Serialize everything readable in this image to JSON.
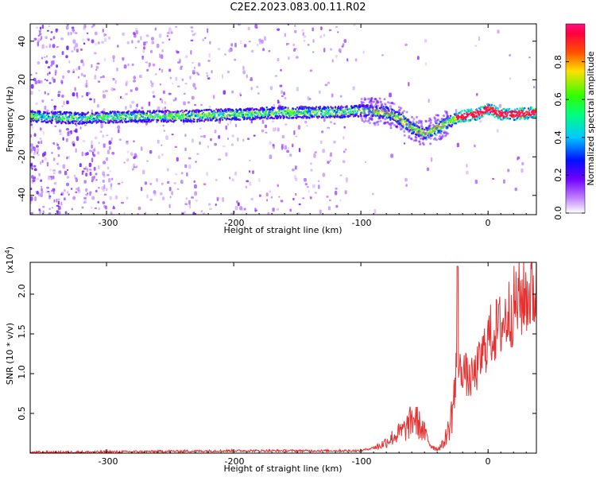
{
  "title": "C2E2.2023.083.00.11.R02",
  "chart_data": [
    {
      "type": "heatmap",
      "description": "Spectrogram of normalized spectral amplitude vs. height of straight line and frequency",
      "xlabel": "Height of straight line (km)",
      "ylabel": "Frequency (Hz)",
      "xlim": [
        -360,
        38
      ],
      "ylim": [
        -50,
        49
      ],
      "xticks": [
        -300,
        -200,
        -100,
        0
      ],
      "yticks": [
        -40,
        -20,
        0,
        20,
        40
      ],
      "ridge": {
        "x": [
          -360,
          -320,
          -280,
          -240,
          -200,
          -160,
          -120,
          -100,
          -80,
          -70,
          -60,
          -50,
          -40,
          -30,
          -25,
          -20,
          -10,
          -5,
          0,
          10,
          20,
          38
        ],
        "y": [
          1,
          0,
          1,
          1,
          2,
          3,
          3,
          4,
          3,
          0,
          -5,
          -8,
          -5,
          -2,
          0,
          1,
          2,
          3,
          5,
          2,
          2,
          3
        ]
      },
      "colorbar": {
        "label": "Normalized spectral amplitude",
        "range": [
          0,
          1
        ],
        "ticks": [
          0.0,
          0.2,
          0.4,
          0.6,
          0.8
        ],
        "tick_labels": [
          "0.0",
          "0.2",
          "0.4",
          "0.6",
          "0.8"
        ]
      }
    },
    {
      "type": "line",
      "xlabel": "Height of straight line (km)",
      "ylabel": "SNR (10 * v/v)",
      "scale_note": "(x10",
      "scale_exp": "4",
      "scale_close": ")",
      "xlim": [
        -360,
        38
      ],
      "ylim": [
        0,
        24000
      ],
      "xticks": [
        -300,
        -200,
        -100,
        0
      ],
      "yticks": [
        5000,
        10000,
        15000,
        20000
      ],
      "ytick_labels": [
        "0.5",
        "1.0",
        "1.5",
        "2.0"
      ],
      "color": "#e83030",
      "series_envelope": {
        "x": [
          -360,
          -300,
          -200,
          -100,
          -85,
          -75,
          -65,
          -58,
          -50,
          -45,
          -40,
          -35,
          -30,
          -25,
          -20,
          -15,
          -10,
          -5,
          0,
          10,
          20,
          30,
          38
        ],
        "y": [
          100,
          150,
          300,
          300,
          900,
          2000,
          3000,
          4500,
          2500,
          1000,
          500,
          1200,
          3500,
          9000,
          11000,
          9000,
          10000,
          12000,
          14500,
          16000,
          18500,
          20000,
          20500
        ]
      }
    }
  ],
  "axis_text": {
    "x300": "-300",
    "x200": "-200",
    "x100": "-100",
    "x0": "0",
    "y40": "40",
    "y20": "20",
    "y0": "0",
    "ym20": "-20",
    "ym40": "-40"
  }
}
